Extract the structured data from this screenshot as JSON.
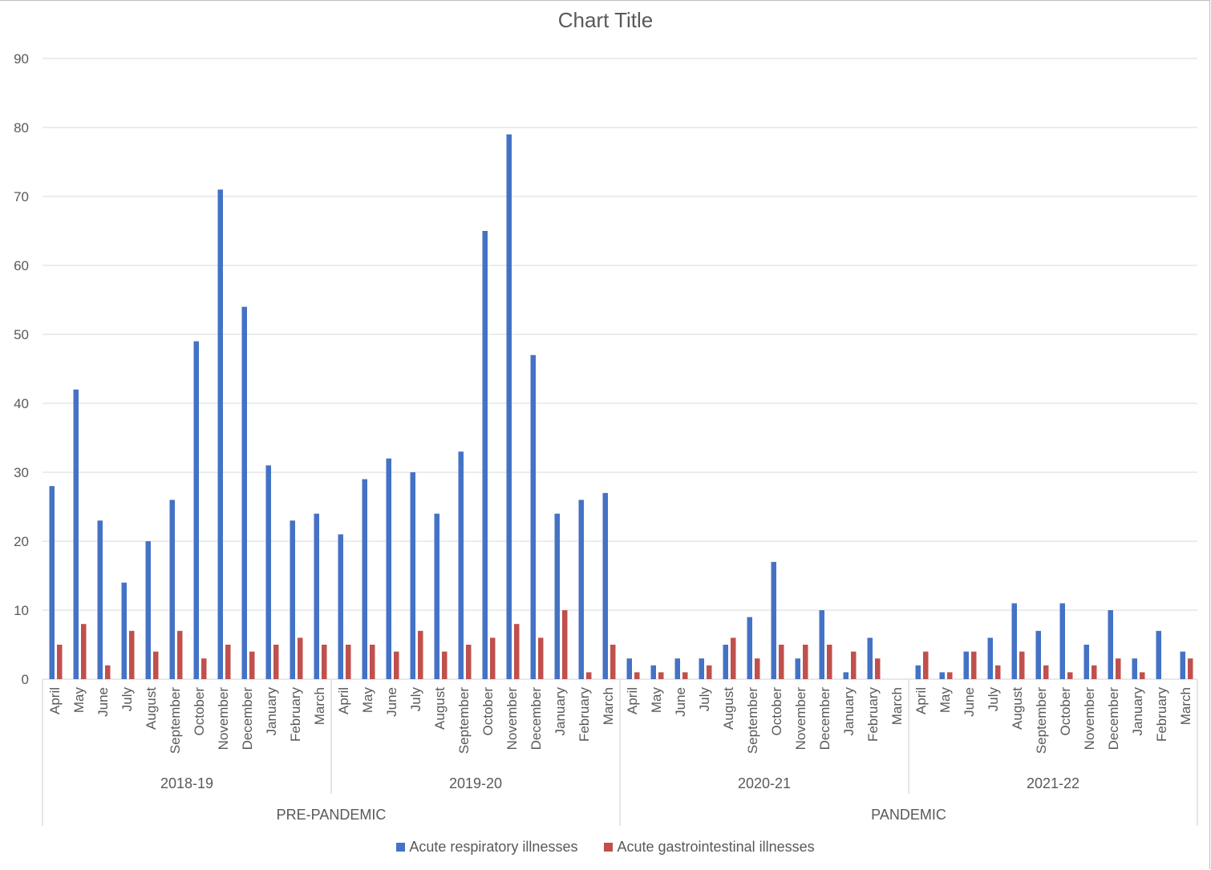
{
  "chart_data": {
    "type": "bar",
    "title": "Chart Title",
    "ylim": [
      0,
      90
    ],
    "yticks": [
      0,
      10,
      20,
      30,
      40,
      50,
      60,
      70,
      80,
      90
    ],
    "grid": true,
    "legend_position": "bottom",
    "groups": [
      {
        "label": "PRE-PANDEMIC",
        "years": [
          "2018-19",
          "2019-20"
        ]
      },
      {
        "label": "PANDEMIC",
        "years": [
          "2020-21",
          "2021-22"
        ]
      }
    ],
    "years": [
      "2018-19",
      "2019-20",
      "2020-21",
      "2021-22"
    ],
    "months": [
      "April",
      "May",
      "June",
      "July",
      "August",
      "September",
      "October",
      "November",
      "December",
      "January",
      "February",
      "March"
    ],
    "series": [
      {
        "name": "Acute respiratory illnesses",
        "color": "#4472c4",
        "values": [
          28,
          42,
          23,
          14,
          20,
          26,
          49,
          71,
          54,
          31,
          23,
          24,
          21,
          29,
          32,
          30,
          24,
          33,
          65,
          79,
          47,
          24,
          26,
          27,
          3,
          2,
          3,
          3,
          5,
          9,
          17,
          3,
          10,
          1,
          6,
          0,
          2,
          1,
          4,
          6,
          11,
          7,
          11,
          5,
          10,
          3,
          7,
          4
        ]
      },
      {
        "name": "Acute gastrointestinal illnesses",
        "color": "#c0504d",
        "values": [
          5,
          8,
          2,
          7,
          4,
          7,
          3,
          5,
          4,
          5,
          6,
          5,
          5,
          5,
          4,
          7,
          4,
          5,
          6,
          8,
          6,
          10,
          1,
          5,
          1,
          1,
          1,
          2,
          6,
          3,
          5,
          5,
          5,
          4,
          3,
          0,
          4,
          1,
          4,
          2,
          4,
          2,
          1,
          2,
          3,
          1,
          0,
          3
        ]
      }
    ]
  }
}
